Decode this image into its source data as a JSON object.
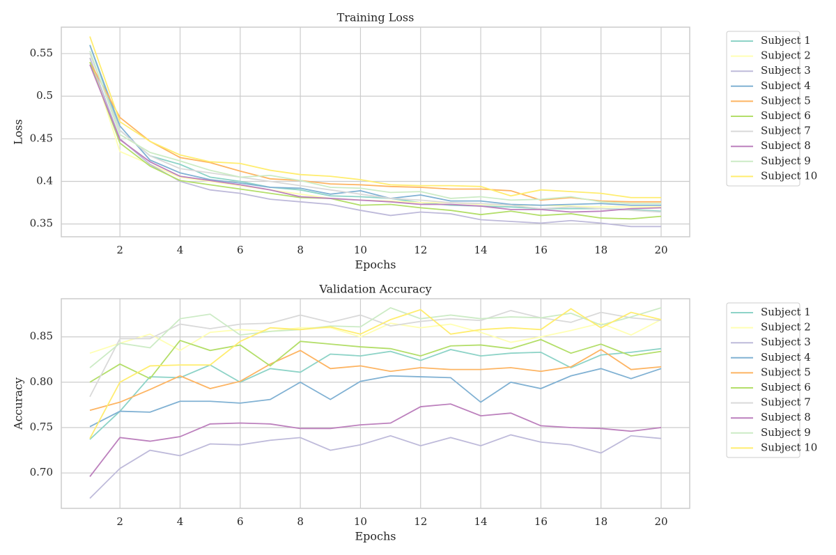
{
  "chart_data": [
    {
      "type": "line",
      "title": "Training Loss",
      "xlabel": "Epochs",
      "ylabel": "Loss",
      "x": [
        1,
        2,
        3,
        4,
        5,
        6,
        7,
        8,
        9,
        10,
        11,
        12,
        13,
        14,
        15,
        16,
        17,
        18,
        19,
        20
      ],
      "xlim": [
        0.05,
        20.95
      ],
      "xticks": [
        2,
        4,
        6,
        8,
        10,
        12,
        14,
        16,
        18,
        20
      ],
      "ylim": [
        0.335,
        0.581
      ],
      "yticks": [
        0.35,
        0.4,
        0.45,
        0.5,
        0.55
      ],
      "grid": true,
      "legend": "outside upper right",
      "series": [
        {
          "name": "Subject 1",
          "color": "#8dd3c7",
          "values": [
            0.56,
            0.46,
            0.43,
            0.42,
            0.405,
            0.4,
            0.393,
            0.39,
            0.383,
            0.382,
            0.38,
            0.375,
            0.372,
            0.371,
            0.37,
            0.368,
            0.368,
            0.368,
            0.367,
            0.365
          ]
        },
        {
          "name": "Subject 2",
          "color": "#ffffb3",
          "values": [
            0.545,
            0.435,
            0.42,
            0.405,
            0.4,
            0.395,
            0.39,
            0.385,
            0.38,
            0.378,
            0.377,
            0.375,
            0.375,
            0.373,
            0.372,
            0.372,
            0.371,
            0.37,
            0.37,
            0.37
          ]
        },
        {
          "name": "Subject 3",
          "color": "#bebada",
          "values": [
            0.545,
            0.45,
            0.42,
            0.4,
            0.39,
            0.386,
            0.379,
            0.376,
            0.373,
            0.366,
            0.36,
            0.364,
            0.362,
            0.355,
            0.353,
            0.351,
            0.354,
            0.351,
            0.347,
            0.347
          ]
        },
        {
          "name": "Subject 4",
          "color": "#80b1d3",
          "values": [
            0.56,
            0.465,
            0.425,
            0.41,
            0.402,
            0.398,
            0.393,
            0.392,
            0.385,
            0.389,
            0.38,
            0.384,
            0.377,
            0.377,
            0.373,
            0.372,
            0.373,
            0.374,
            0.372,
            0.372
          ]
        },
        {
          "name": "Subject 5",
          "color": "#fdb462",
          "values": [
            0.54,
            0.475,
            0.447,
            0.428,
            0.422,
            0.412,
            0.403,
            0.401,
            0.397,
            0.396,
            0.394,
            0.393,
            0.391,
            0.391,
            0.389,
            0.378,
            0.381,
            0.377,
            0.376,
            0.376
          ]
        },
        {
          "name": "Subject 6",
          "color": "#b3de69",
          "values": [
            0.54,
            0.445,
            0.418,
            0.401,
            0.396,
            0.391,
            0.386,
            0.381,
            0.38,
            0.372,
            0.373,
            0.369,
            0.366,
            0.361,
            0.365,
            0.36,
            0.362,
            0.357,
            0.356,
            0.359
          ]
        },
        {
          "name": "Subject 7",
          "color": "#d9d9d9",
          "values": [
            0.55,
            0.46,
            0.43,
            0.415,
            0.41,
            0.405,
            0.4,
            0.395,
            0.39,
            0.385,
            0.38,
            0.378,
            0.375,
            0.374,
            0.372,
            0.368,
            0.37,
            0.368,
            0.366,
            0.364
          ]
        },
        {
          "name": "Subject 8",
          "color": "#bc80bd",
          "values": [
            0.537,
            0.449,
            0.423,
            0.406,
            0.401,
            0.396,
            0.39,
            0.382,
            0.38,
            0.378,
            0.376,
            0.373,
            0.373,
            0.371,
            0.367,
            0.367,
            0.364,
            0.365,
            0.368,
            0.369
          ]
        },
        {
          "name": "Subject 9",
          "color": "#ccebc5",
          "values": [
            0.553,
            0.455,
            0.434,
            0.424,
            0.413,
            0.405,
            0.407,
            0.401,
            0.393,
            0.392,
            0.387,
            0.388,
            0.38,
            0.382,
            0.378,
            0.379,
            0.382,
            0.376,
            0.374,
            0.374
          ]
        },
        {
          "name": "Subject 10",
          "color": "#ffed6f",
          "values": [
            0.57,
            0.47,
            0.447,
            0.431,
            0.423,
            0.421,
            0.413,
            0.408,
            0.406,
            0.402,
            0.396,
            0.395,
            0.395,
            0.394,
            0.383,
            0.39,
            0.388,
            0.386,
            0.381,
            0.381
          ]
        }
      ]
    },
    {
      "type": "line",
      "title": "Validation Accuracy",
      "xlabel": "Epochs",
      "ylabel": "Accuracy",
      "x": [
        1,
        2,
        3,
        4,
        5,
        6,
        7,
        8,
        9,
        10,
        11,
        12,
        13,
        14,
        15,
        16,
        17,
        18,
        19,
        20
      ],
      "xlim": [
        0.05,
        20.95
      ],
      "xticks": [
        2,
        4,
        6,
        8,
        10,
        12,
        14,
        16,
        18,
        20
      ],
      "ylim": [
        0.661,
        0.892
      ],
      "yticks": [
        {
          "value": 0.7,
          "label": "0.70"
        },
        0.75,
        {
          "value": 0.8,
          "label": "0.80"
        },
        0.85
      ],
      "grid": true,
      "legend": "outside upper right",
      "series": [
        {
          "name": "Subject 1",
          "color": "#8dd3c7",
          "values": [
            0.737,
            0.768,
            0.806,
            0.805,
            0.819,
            0.8,
            0.815,
            0.811,
            0.831,
            0.829,
            0.834,
            0.824,
            0.836,
            0.829,
            0.832,
            0.833,
            0.816,
            0.83,
            0.833,
            0.837
          ]
        },
        {
          "name": "Subject 2",
          "color": "#ffffb3",
          "values": [
            0.832,
            0.843,
            0.853,
            0.835,
            0.855,
            0.858,
            0.856,
            0.86,
            0.86,
            0.85,
            0.865,
            0.86,
            0.864,
            0.855,
            0.844,
            0.85,
            0.857,
            0.865,
            0.852,
            0.869
          ]
        },
        {
          "name": "Subject 3",
          "color": "#bebada",
          "values": [
            0.672,
            0.705,
            0.725,
            0.719,
            0.732,
            0.731,
            0.736,
            0.739,
            0.725,
            0.731,
            0.741,
            0.73,
            0.739,
            0.73,
            0.742,
            0.734,
            0.731,
            0.722,
            0.741,
            0.738
          ]
        },
        {
          "name": "Subject 4",
          "color": "#80b1d3",
          "values": [
            0.751,
            0.768,
            0.767,
            0.779,
            0.779,
            0.777,
            0.781,
            0.8,
            0.781,
            0.801,
            0.807,
            0.806,
            0.805,
            0.778,
            0.8,
            0.793,
            0.807,
            0.815,
            0.804,
            0.815
          ]
        },
        {
          "name": "Subject 5",
          "color": "#fdb462",
          "values": [
            0.769,
            0.778,
            0.792,
            0.807,
            0.793,
            0.801,
            0.82,
            0.835,
            0.815,
            0.818,
            0.812,
            0.816,
            0.814,
            0.814,
            0.816,
            0.812,
            0.817,
            0.836,
            0.814,
            0.817
          ]
        },
        {
          "name": "Subject 6",
          "color": "#b3de69",
          "values": [
            0.8,
            0.82,
            0.804,
            0.846,
            0.835,
            0.841,
            0.818,
            0.845,
            0.842,
            0.839,
            0.837,
            0.829,
            0.84,
            0.841,
            0.837,
            0.847,
            0.832,
            0.842,
            0.829,
            0.834
          ]
        },
        {
          "name": "Subject 7",
          "color": "#d9d9d9",
          "values": [
            0.784,
            0.848,
            0.848,
            0.864,
            0.859,
            0.864,
            0.865,
            0.874,
            0.866,
            0.874,
            0.862,
            0.867,
            0.87,
            0.868,
            0.879,
            0.871,
            0.866,
            0.877,
            0.871,
            0.868
          ]
        },
        {
          "name": "Subject 8",
          "color": "#bc80bd",
          "values": [
            0.696,
            0.739,
            0.735,
            0.74,
            0.754,
            0.755,
            0.754,
            0.749,
            0.749,
            0.753,
            0.755,
            0.773,
            0.776,
            0.763,
            0.766,
            0.752,
            0.75,
            0.749,
            0.746,
            0.75
          ]
        },
        {
          "name": "Subject 9",
          "color": "#ccebc5",
          "values": [
            0.816,
            0.843,
            0.838,
            0.87,
            0.875,
            0.852,
            0.856,
            0.858,
            0.862,
            0.861,
            0.882,
            0.87,
            0.874,
            0.87,
            0.872,
            0.871,
            0.876,
            0.863,
            0.872,
            0.882
          ]
        },
        {
          "name": "Subject 10",
          "color": "#ffed6f",
          "values": [
            0.738,
            0.8,
            0.818,
            0.819,
            0.819,
            0.845,
            0.86,
            0.858,
            0.861,
            0.853,
            0.869,
            0.88,
            0.853,
            0.858,
            0.86,
            0.858,
            0.881,
            0.86,
            0.877,
            0.869
          ]
        }
      ]
    }
  ]
}
